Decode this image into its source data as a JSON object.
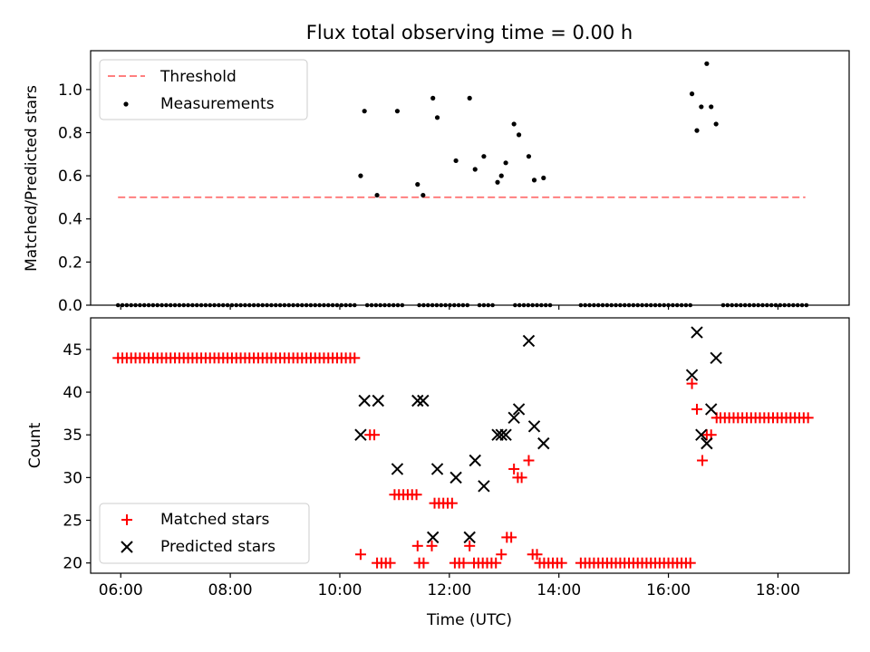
{
  "chart_data": [
    {
      "type": "scatter",
      "title": "Flux total observing time = 0.00 h",
      "xlabel": "",
      "ylabel": "Matched/Predicted stars",
      "xlim": [
        5.45,
        19.3
      ],
      "ylim": [
        0.0,
        1.18
      ],
      "yticks": [
        0.0,
        0.2,
        0.4,
        0.6,
        0.8,
        1.0
      ],
      "ytick_labels": [
        "0.0",
        "0.2",
        "0.4",
        "0.6",
        "0.8",
        "1.0"
      ],
      "xticks": [
        6,
        8,
        10,
        12,
        14,
        16,
        18
      ],
      "legend_position": "upper-left",
      "grid": false,
      "threshold": {
        "name": "Threshold",
        "y": 0.5,
        "x_range": [
          5.95,
          18.5
        ],
        "color": "#ff7f7f"
      },
      "measurements": {
        "name": "Measurements",
        "color": "#000000",
        "points": [
          [
            10.38,
            0.6
          ],
          [
            10.45,
            0.9
          ],
          [
            10.68,
            0.51
          ],
          [
            11.05,
            0.9
          ],
          [
            11.42,
            0.56
          ],
          [
            11.52,
            0.51
          ],
          [
            11.7,
            0.96
          ],
          [
            11.78,
            0.87
          ],
          [
            12.12,
            0.67
          ],
          [
            12.37,
            0.96
          ],
          [
            12.47,
            0.63
          ],
          [
            12.63,
            0.69
          ],
          [
            12.88,
            0.57
          ],
          [
            12.95,
            0.6
          ],
          [
            13.03,
            0.66
          ],
          [
            13.18,
            0.84
          ],
          [
            13.27,
            0.79
          ],
          [
            13.45,
            0.69
          ],
          [
            13.55,
            0.58
          ],
          [
            13.72,
            0.59
          ],
          [
            16.43,
            0.98
          ],
          [
            16.52,
            0.81
          ],
          [
            16.6,
            0.92
          ],
          [
            16.7,
            1.12
          ],
          [
            16.78,
            0.92
          ],
          [
            16.87,
            0.84
          ]
        ],
        "zero_segments": [
          [
            5.95,
            10.3
          ],
          [
            10.5,
            11.2
          ],
          [
            11.45,
            12.4
          ],
          [
            12.55,
            12.85
          ],
          [
            13.2,
            13.9
          ],
          [
            14.4,
            16.4
          ],
          [
            17.0,
            18.55
          ]
        ]
      }
    },
    {
      "type": "scatter",
      "title": "",
      "xlabel": "Time (UTC)",
      "ylabel": "Count",
      "xlim": [
        5.45,
        19.3
      ],
      "ylim": [
        18.8,
        48.7
      ],
      "yticks": [
        20,
        25,
        30,
        35,
        40,
        45
      ],
      "ytick_labels": [
        "20",
        "25",
        "30",
        "35",
        "40",
        "45"
      ],
      "xticks": [
        6,
        8,
        10,
        12,
        14,
        16,
        18
      ],
      "xtick_labels": [
        "06:00",
        "08:00",
        "10:00",
        "12:00",
        "14:00",
        "16:00",
        "18:00"
      ],
      "legend_position": "lower-left",
      "grid": false,
      "series": [
        {
          "name": "Matched stars",
          "marker": "+",
          "color": "#ff0000",
          "runs": [
            [
              5.95,
              10.32,
              44
            ],
            [
              10.55,
              10.65,
              35
            ],
            [
              10.68,
              10.95,
              20
            ],
            [
              11.0,
              11.42,
              28
            ],
            [
              11.45,
              11.58,
              20
            ],
            [
              11.73,
              12.05,
              27
            ],
            [
              12.1,
              12.3,
              20
            ],
            [
              12.45,
              12.85,
              20
            ],
            [
              13.05,
              13.13,
              23
            ],
            [
              13.52,
              13.62,
              21
            ],
            [
              13.65,
              14.1,
              20
            ],
            [
              14.4,
              16.4,
              20
            ],
            [
              16.95,
              18.55,
              37
            ]
          ],
          "points": [
            [
              10.38,
              21
            ],
            [
              11.42,
              22
            ],
            [
              11.68,
              22
            ],
            [
              12.37,
              22
            ],
            [
              12.95,
              21
            ],
            [
              13.18,
              31
            ],
            [
              13.25,
              30
            ],
            [
              13.32,
              30
            ],
            [
              13.45,
              32
            ],
            [
              16.43,
              41
            ],
            [
              16.52,
              38
            ],
            [
              16.62,
              32
            ],
            [
              16.7,
              35
            ],
            [
              16.78,
              35
            ],
            [
              16.88,
              37
            ]
          ]
        },
        {
          "name": "Predicted stars",
          "marker": "x",
          "color": "#000000",
          "points": [
            [
              10.38,
              35
            ],
            [
              10.45,
              39
            ],
            [
              10.7,
              39
            ],
            [
              11.05,
              31
            ],
            [
              11.42,
              39
            ],
            [
              11.52,
              39
            ],
            [
              11.7,
              23
            ],
            [
              11.78,
              31
            ],
            [
              12.12,
              30
            ],
            [
              12.37,
              23
            ],
            [
              12.47,
              32
            ],
            [
              12.63,
              29
            ],
            [
              12.88,
              35
            ],
            [
              12.95,
              35
            ],
            [
              13.03,
              35
            ],
            [
              13.18,
              37
            ],
            [
              13.27,
              38
            ],
            [
              13.45,
              46
            ],
            [
              13.55,
              36
            ],
            [
              13.72,
              34
            ],
            [
              16.43,
              42
            ],
            [
              16.52,
              47
            ],
            [
              16.6,
              35
            ],
            [
              16.7,
              34
            ],
            [
              16.78,
              38
            ],
            [
              16.87,
              44
            ]
          ]
        }
      ]
    }
  ]
}
